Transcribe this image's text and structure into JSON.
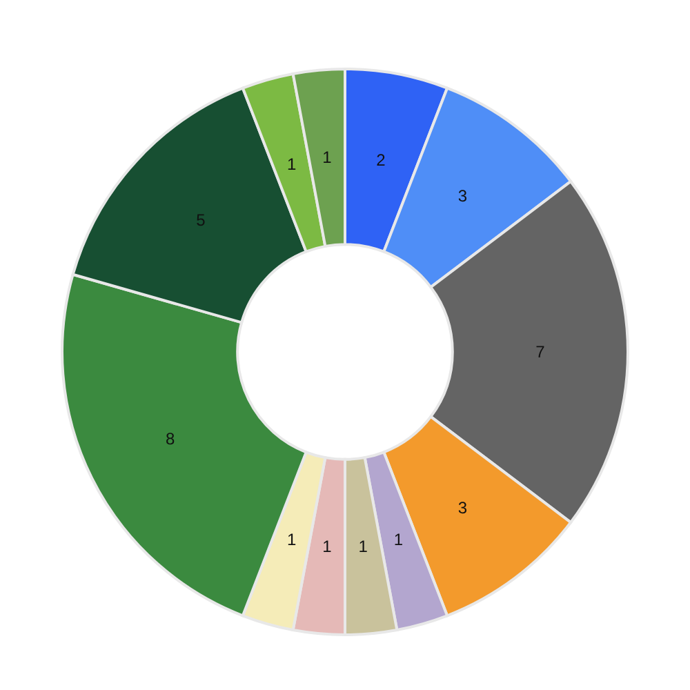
{
  "chart_data": {
    "type": "donut",
    "categories": [
      null,
      null,
      null,
      null,
      null,
      null,
      null,
      null,
      null,
      null,
      null,
      null
    ],
    "values": [
      2,
      3,
      7,
      3,
      1,
      1,
      1,
      1,
      8,
      5,
      1,
      1
    ],
    "colors": [
      "#2f62f5",
      "#4f8ef7",
      "#646464",
      "#f39a2c",
      "#b3a6cf",
      "#c9c29c",
      "#e5b9b7",
      "#f5ecb8",
      "#3b8a3f",
      "#174f32",
      "#7cba43",
      "#6da150"
    ],
    "data_labels": true
  }
}
